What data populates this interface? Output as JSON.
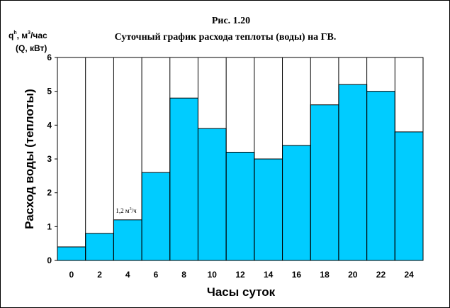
{
  "chart_data": {
    "type": "bar",
    "figure_number": "Рис. 1.20",
    "title": "Суточный график расхода теплоты (воды) на ГВ.",
    "ylabel": "Расход воды (теплоты)",
    "xlabel": "Часы суток",
    "unit_label": {
      "line1_prefix": "q",
      "line1_sup": "h",
      "line1_mid": ", м",
      "line1_sup2": "3",
      "line1_suffix": "/час",
      "line2": "(Q, кВт)"
    },
    "categories": [
      "0",
      "2",
      "4",
      "6",
      "8",
      "10",
      "12",
      "14",
      "16",
      "18",
      "20",
      "22",
      "24"
    ],
    "values": [
      0.4,
      0.8,
      1.2,
      2.6,
      4.8,
      3.9,
      3.2,
      3.0,
      3.4,
      4.6,
      5.2,
      5.0,
      3.8
    ],
    "ylim": [
      0,
      6
    ],
    "yticks": [
      "0",
      "1",
      "2",
      "3",
      "4",
      "5",
      "6"
    ],
    "grid": "vertical and horizontal",
    "bar_color": "#00CCFF",
    "annotation": {
      "text_prefix": "1,2 м",
      "text_sup": "3",
      "text_suffix": "/ч",
      "category_index": 2
    }
  }
}
